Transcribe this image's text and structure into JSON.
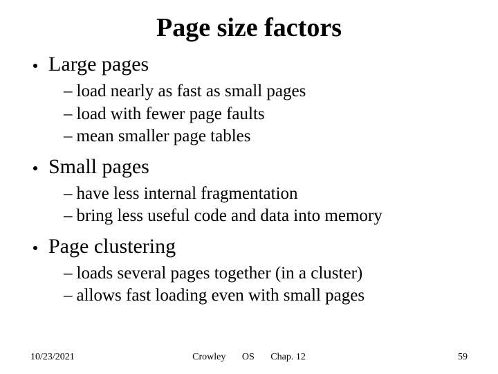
{
  "title": "Page size factors",
  "sections": [
    {
      "heading": "Large pages",
      "items": [
        "load nearly as fast as small pages",
        "load with fewer page faults",
        "mean smaller page tables"
      ]
    },
    {
      "heading": "Small pages",
      "items": [
        "have less internal fragmentation",
        "bring less useful code and data into memory"
      ]
    },
    {
      "heading": "Page clustering",
      "items": [
        "loads several pages together (in a cluster)",
        "allows fast loading even with small pages"
      ]
    }
  ],
  "footer": {
    "date": "10/23/2021",
    "author": "Crowley",
    "course": "OS",
    "chapter": "Chap. 12",
    "page": "59"
  },
  "style": {
    "background_color": "#ffffff",
    "text_color": "#000000",
    "title_fontsize": 38,
    "l1_fontsize": 30,
    "l2_fontsize": 25,
    "footer_fontsize": 14,
    "font_family": "Times New Roman"
  }
}
